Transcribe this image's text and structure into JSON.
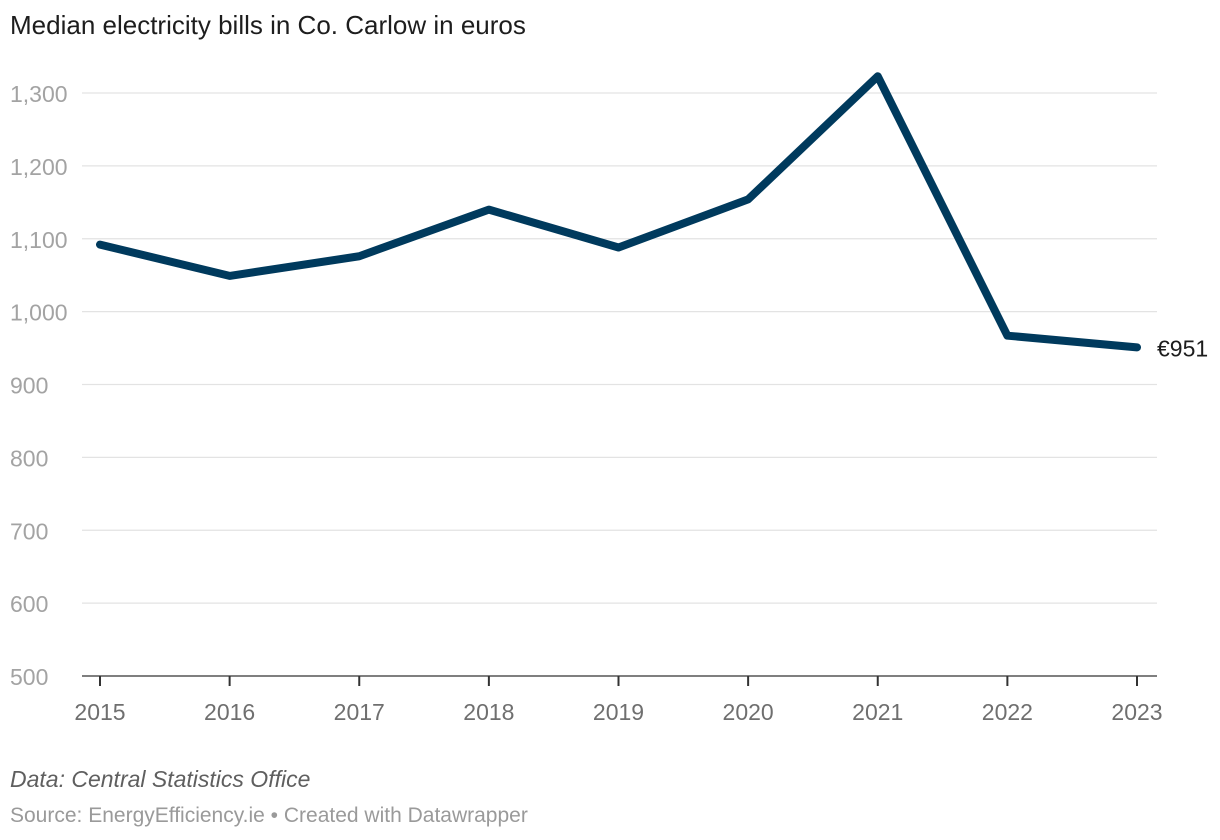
{
  "chart_data": {
    "type": "line",
    "title": "Median electricity bills in Co. Carlow in euros",
    "x": [
      "2015",
      "2016",
      "2017",
      "2018",
      "2019",
      "2020",
      "2021",
      "2022",
      "2023"
    ],
    "series": [
      {
        "name": "Median electricity bill",
        "values": [
          1092,
          1049,
          1076,
          1140,
          1088,
          1154,
          1323,
          967,
          951
        ]
      }
    ],
    "yticks": [
      500,
      600,
      700,
      800,
      900,
      1000,
      1100,
      1200,
      1300
    ],
    "ytick_labels": [
      "500",
      "600",
      "700",
      "800",
      "900",
      "1,000",
      "1,100",
      "1,200",
      "1,300"
    ],
    "ylim": [
      500,
      1300
    ],
    "end_label": "€951",
    "line_color": "#003a5d",
    "xlabel": "",
    "ylabel": ""
  },
  "footer": {
    "note": "Data: Central Statistics Office",
    "source": "Source: EnergyEfficiency.ie • Created with Datawrapper"
  }
}
